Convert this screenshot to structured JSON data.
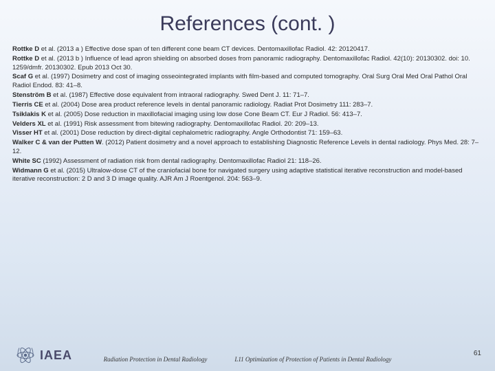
{
  "title": "References (cont. )",
  "refs": [
    {
      "author": "Rottke D",
      "rest": " et al. (2013 a ) Effective dose span of ten different cone beam CT devices. Dentomaxillofac Radiol. 42: 20120417."
    },
    {
      "author": "Rottke D",
      "rest": " et al. (2013 b ) Influence of lead apron shielding on absorbed doses from panoramic radiography. Dentomaxillofac Radiol. 42(10): 20130302. doi: 10. 1259/dmfr. 20130302. Epub 2013 Oct 30."
    },
    {
      "author": "Scaf G",
      "rest": " et al. (1997) Dosimetry and cost of imaging osseointegrated implants with film-based and computed tomography. Oral Surg Oral Med Oral Pathol Oral Radiol Endod. 83: 41–8."
    },
    {
      "author": "Stenström B",
      "rest": " et al. (1987) Effective dose equivalent from intraoral radiography. Swed Dent J. 11: 71–7."
    },
    {
      "author": "Tierris CE",
      "rest": " et al. (2004) Dose area product reference levels in dental panoramic radiology. Radiat Prot Dosimetry 111: 283–7."
    },
    {
      "author": "Tsiklakis K",
      "rest": " et al. (2005) Dose reduction in maxillofacial imaging using low dose Cone Beam CT. Eur J Radiol. 56: 413–7."
    },
    {
      "author": "Velders XL",
      "rest": " et al. (1991) Risk assessment from bitewing radiography. Dentomaxillofac Radiol. 20: 209–13."
    },
    {
      "author": "Visser HT",
      "rest": " et al. (2001) Dose reduction by direct-digital cephalometric radiography. Angle Orthodontist 71: 159–63."
    },
    {
      "author": "Walker C & van der Putten W",
      "rest": ". (2012) Patient dosimetry and a novel approach to establishing Diagnostic Reference Levels in dental radiology. Phys Med. 28: 7–12."
    },
    {
      "author": "White SC",
      "rest": " (1992) Assessment of radiation risk from dental radiography. Dentomaxillofac Radiol 21: 118–26."
    },
    {
      "author": "Widmann G",
      "rest": " et al. (2015) Ultralow-dose CT of the craniofacial bone for navigated surgery using adaptive statistical iterative reconstruction and model-based iterative reconstruction: 2 D and 3 D image quality. AJR Am J Roentgenol. 204: 563–9."
    }
  ],
  "logo_text": "IAEA",
  "footer_left": "Radiation Protection in Dental Radiology",
  "footer_right": "L11 Optimization of Protection of Patients in Dental Radiology",
  "page_num": "61",
  "colors": {
    "title_color": "#3a3a5a",
    "logo_stroke": "#5a6a8a"
  }
}
